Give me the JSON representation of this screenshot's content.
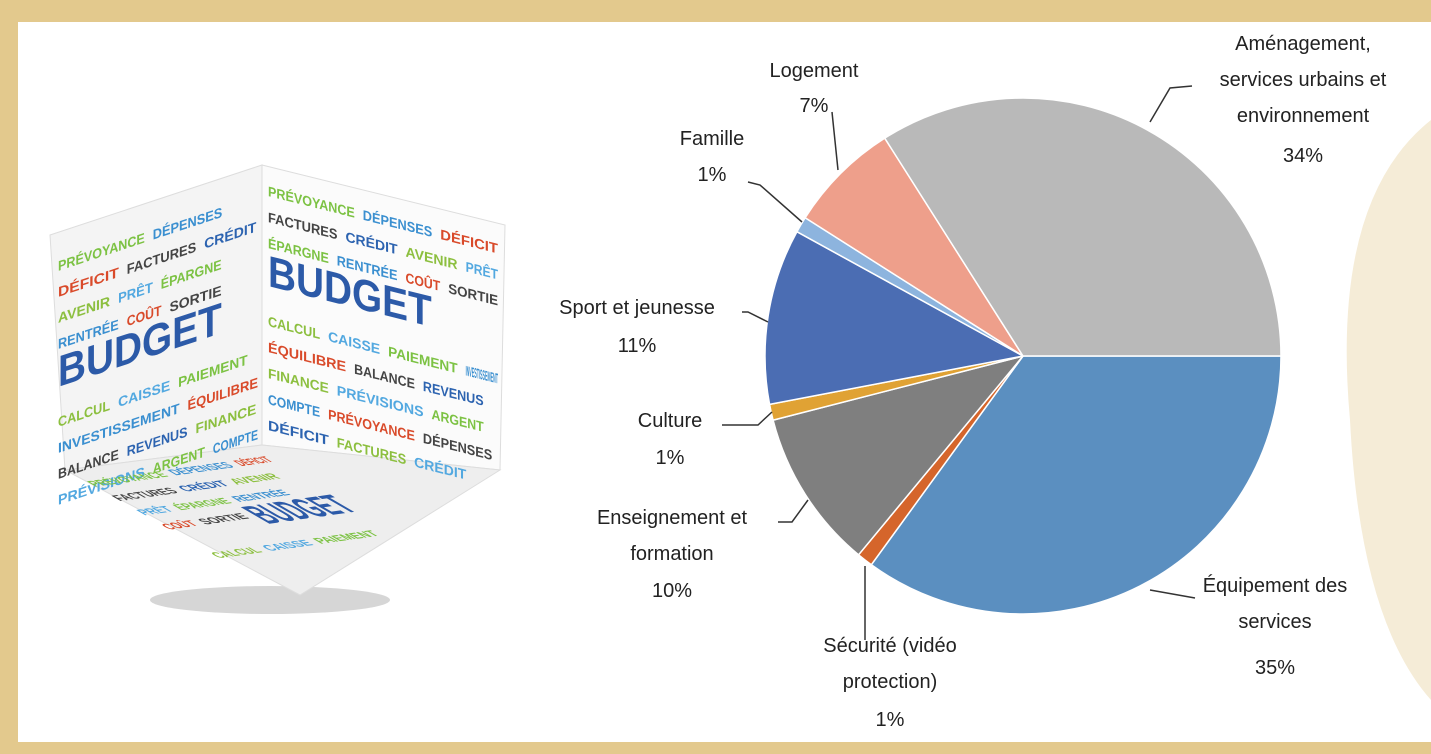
{
  "chart_data": {
    "type": "pie",
    "categories": [
      "Équipement des services",
      "Sécurité (vidéo protection)",
      "Enseignement et formation",
      "Culture",
      "Sport et jeunesse",
      "Famille",
      "Logement",
      "Aménagement, services urbains et environnement"
    ],
    "values": [
      35,
      1,
      10,
      1,
      11,
      1,
      7,
      34
    ],
    "value_labels": [
      "35%",
      "1%",
      "10%",
      "1%",
      "11%",
      "1%",
      "7%",
      "34%"
    ],
    "colors": [
      "#5b8fc0",
      "#d5652b",
      "#7f7f7f",
      "#e0a234",
      "#4b6db3",
      "#8db4de",
      "#ee9f8b",
      "#b9b9b9"
    ]
  },
  "image": {
    "words": [
      "PRÉVOYANCE",
      "DÉPENSES",
      "DÉFICIT",
      "FACTURES",
      "CRÉDIT",
      "AVENIR",
      "PRÊT",
      "ÉPARGNE",
      "RENTRÉE",
      "COÛT",
      "SORTIE",
      "BUDGET",
      "CALCUL",
      "CAISSE",
      "PAIEMENT",
      "INVESTISSEMENT",
      "ÉQUILIBRE",
      "BALANCE",
      "REVENUS",
      "FINANCE",
      "PRÉVISIONS",
      "ARGENT",
      "COMPTE"
    ]
  }
}
